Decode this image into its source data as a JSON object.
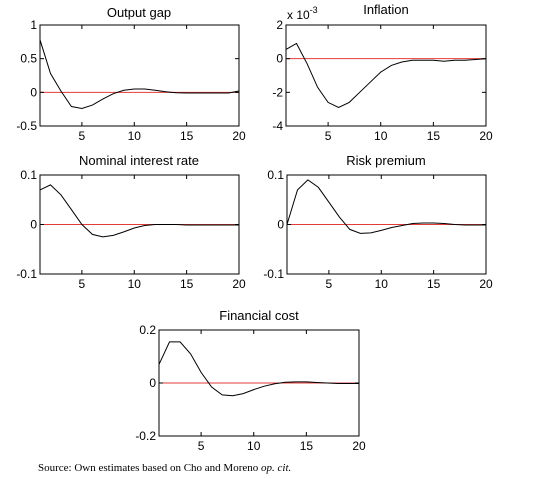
{
  "source_prefix": "Source: Own estimates based on Cho and Moreno ",
  "source_italic": "op. cit.",
  "chart_data": [
    {
      "type": "line",
      "title": "Output gap",
      "xlim": [
        1,
        20
      ],
      "ylim": [
        -0.5,
        1
      ],
      "xticks": [
        5,
        10,
        15,
        20
      ],
      "yticks": [
        -0.5,
        0,
        0.5,
        1
      ],
      "ytick_labels": [
        "-0.5",
        "0",
        "0.5",
        "1"
      ],
      "zero_line_color": "#e23b3b",
      "x": [
        1,
        2,
        3,
        4,
        5,
        6,
        7,
        8,
        9,
        10,
        11,
        12,
        13,
        14,
        15,
        16,
        17,
        18,
        19,
        20
      ],
      "y": [
        0.78,
        0.28,
        0.02,
        -0.21,
        -0.24,
        -0.19,
        -0.1,
        -0.02,
        0.03,
        0.05,
        0.05,
        0.03,
        0.01,
        -0.005,
        -0.01,
        -0.01,
        -0.01,
        -0.01,
        -0.01,
        0.02
      ]
    },
    {
      "type": "line",
      "title": "Inflation",
      "scale_label": "x 10",
      "scale_exponent": "-3",
      "xlim": [
        1,
        20
      ],
      "ylim": [
        -4,
        2
      ],
      "xticks": [
        5,
        10,
        15,
        20
      ],
      "yticks": [
        -4,
        -2,
        0,
        2
      ],
      "ytick_labels": [
        "-4",
        "-2",
        "0",
        "2"
      ],
      "zero_line_color": "#e23b3b",
      "x": [
        1,
        2,
        3,
        4,
        5,
        6,
        7,
        8,
        9,
        10,
        11,
        12,
        13,
        14,
        15,
        16,
        17,
        18,
        19,
        20
      ],
      "y": [
        0.55,
        0.9,
        -0.3,
        -1.7,
        -2.6,
        -2.9,
        -2.6,
        -2.0,
        -1.4,
        -0.8,
        -0.4,
        -0.2,
        -0.1,
        -0.1,
        -0.1,
        -0.15,
        -0.1,
        -0.1,
        -0.05,
        0.0
      ]
    },
    {
      "type": "line",
      "title": "Nominal interest rate",
      "xlim": [
        1,
        20
      ],
      "ylim": [
        -0.1,
        0.1
      ],
      "xticks": [
        5,
        10,
        15,
        20
      ],
      "yticks": [
        -0.1,
        0,
        0.1
      ],
      "ytick_labels": [
        "-0.1",
        "0",
        "0.1"
      ],
      "zero_line_color": "#e23b3b",
      "x": [
        1,
        2,
        3,
        4,
        5,
        6,
        7,
        8,
        9,
        10,
        11,
        12,
        13,
        14,
        15,
        16,
        17,
        18,
        19,
        20
      ],
      "y": [
        0.07,
        0.08,
        0.06,
        0.03,
        0.0,
        -0.02,
        -0.025,
        -0.022,
        -0.015,
        -0.007,
        -0.002,
        0.0,
        0.0,
        0.0,
        -0.001,
        -0.001,
        -0.001,
        -0.001,
        -0.001,
        -0.001
      ]
    },
    {
      "type": "line",
      "title": "Risk premium",
      "xlim": [
        1,
        20
      ],
      "ylim": [
        -0.1,
        0.1
      ],
      "xticks": [
        5,
        10,
        15,
        20
      ],
      "yticks": [
        -0.1,
        0,
        0.1
      ],
      "ytick_labels": [
        "-0.1",
        "0",
        "0.1"
      ],
      "zero_line_color": "#e23b3b",
      "x": [
        1,
        2,
        3,
        4,
        5,
        6,
        7,
        8,
        9,
        10,
        11,
        12,
        13,
        14,
        15,
        16,
        17,
        18,
        19,
        20
      ],
      "y": [
        0.0,
        0.07,
        0.09,
        0.075,
        0.045,
        0.015,
        -0.01,
        -0.018,
        -0.017,
        -0.012,
        -0.006,
        -0.002,
        0.002,
        0.003,
        0.003,
        0.002,
        0.0,
        -0.001,
        -0.001,
        -0.001
      ]
    },
    {
      "type": "line",
      "title": "Financial cost",
      "xlim": [
        1,
        20
      ],
      "ylim": [
        -0.2,
        0.2
      ],
      "xticks": [
        5,
        10,
        15,
        20
      ],
      "yticks": [
        -0.2,
        0,
        0.2
      ],
      "ytick_labels": [
        "-0.2",
        "0",
        "0.2"
      ],
      "zero_line_color": "#e23b3b",
      "x": [
        1,
        2,
        3,
        4,
        5,
        6,
        7,
        8,
        9,
        10,
        11,
        12,
        13,
        14,
        15,
        16,
        17,
        18,
        19,
        20
      ],
      "y": [
        0.07,
        0.155,
        0.155,
        0.11,
        0.04,
        -0.015,
        -0.045,
        -0.048,
        -0.04,
        -0.025,
        -0.012,
        -0.003,
        0.003,
        0.004,
        0.004,
        0.002,
        0.0,
        -0.002,
        -0.002,
        -0.002
      ]
    }
  ]
}
